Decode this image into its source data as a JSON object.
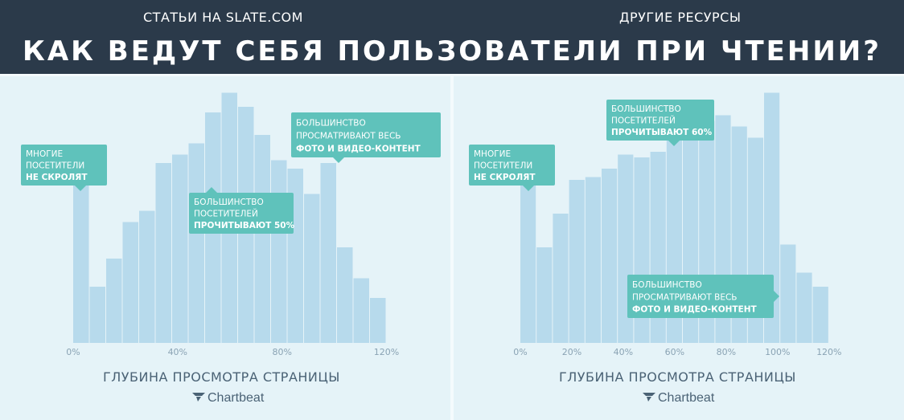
{
  "header": {
    "subtitle_left": "СТАТЬИ НА SLATE.COM",
    "subtitle_right": "ДРУГИЕ РЕСУРСЫ",
    "title": "КАК ВЕДУТ СЕБЯ ПОЛЬЗОВАТЕЛИ ПРИ ЧТЕНИИ?"
  },
  "logo_text": "Chartbeat",
  "colors": {
    "bar": "#b7daec",
    "annotation": "#5fc2bb",
    "header": "#2b3a4a",
    "text": "#4a6275"
  },
  "chart_data": [
    {
      "type": "bar",
      "title": "СТАТЬИ НА SLATE.COM",
      "xlabel": "ГЛУБИНА ПРОСМОТРА СТРАНИЦЫ",
      "ylabel": "",
      "x_ticks": [
        "0%",
        "40%",
        "80%",
        "120%"
      ],
      "x_range": [
        0,
        120
      ],
      "values": [
        59,
        20,
        30,
        43,
        47,
        64,
        67,
        71,
        82,
        89,
        84,
        74,
        65,
        62,
        53,
        64,
        34,
        23,
        16
      ],
      "annotations": [
        {
          "lines": [
            "МНОГИЕ",
            "ПОСЕТИТЕЛИ",
            "НЕ СКРОЛЯТ"
          ]
        },
        {
          "lines": [
            "БОЛЬШИНСТВО",
            "ПОСЕТИТЕЛЕЙ",
            "ПРОЧИТЫВАЮТ 50%"
          ]
        },
        {
          "lines": [
            "БОЛЬШИНСТВО",
            "ПРОСМАТРИВАЮТ ВЕСЬ",
            "ФОТО И ВИДЕО-КОНТЕНТ"
          ]
        }
      ]
    },
    {
      "type": "bar",
      "title": "ДРУГИЕ РЕСУРСЫ",
      "xlabel": "ГЛУБИНА ПРОСМОТРА СТРАНИЦЫ",
      "ylabel": "",
      "x_ticks": [
        "0%",
        "20%",
        "40%",
        "60%",
        "80%",
        "100%",
        "120%"
      ],
      "x_range": [
        0,
        120
      ],
      "values": [
        59,
        34,
        46,
        58,
        59,
        62,
        67,
        66,
        68,
        74,
        76,
        79,
        81,
        77,
        73,
        89,
        35,
        25,
        20
      ],
      "annotations": [
        {
          "lines": [
            "МНОГИЕ",
            "ПОСЕТИТЕЛИ",
            "НЕ СКРОЛЯТ"
          ]
        },
        {
          "lines": [
            "БОЛЬШИНСТВО",
            "ПОСЕТИТЕЛЕЙ",
            "ПРОЧИТЫВАЮТ 60%"
          ]
        },
        {
          "lines": [
            "БОЛЬШИНСТВО",
            "ПРОСМАТРИВАЮТ ВЕСЬ",
            "ФОТО И ВИДЕО-КОНТЕНТ"
          ]
        }
      ]
    }
  ]
}
